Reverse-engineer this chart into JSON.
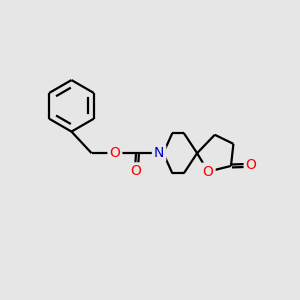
{
  "background_color": "#e6e6e6",
  "bond_color": "#000000",
  "bond_width": 1.6,
  "atom_colors": {
    "O": "#ff0000",
    "N": "#0000cd",
    "C": "#000000"
  },
  "font_size": 10,
  "figsize": [
    3.0,
    3.0
  ],
  "dpi": 100,
  "xlim": [
    0,
    12
  ],
  "ylim": [
    0,
    12
  ]
}
